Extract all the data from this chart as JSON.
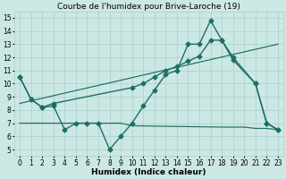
{
  "line1_x": [
    0,
    1,
    2,
    3,
    4,
    5,
    6,
    7,
    8,
    9,
    10,
    11,
    12,
    13,
    14,
    15,
    16,
    17,
    18,
    19,
    21,
    22,
    23
  ],
  "line1_y": [
    10.5,
    8.8,
    8.2,
    8.3,
    6.5,
    7.0,
    7.0,
    7.0,
    5.0,
    6.0,
    7.0,
    8.3,
    9.5,
    10.7,
    11.0,
    13.0,
    13.0,
    14.8,
    13.3,
    11.8,
    10.0,
    7.0,
    6.5
  ],
  "line2_x": [
    0,
    1,
    2,
    3,
    10,
    11,
    12,
    13,
    14,
    15,
    16,
    17,
    18,
    19,
    21,
    22,
    23
  ],
  "line2_y": [
    10.5,
    8.8,
    8.2,
    8.5,
    9.7,
    10.0,
    10.5,
    11.0,
    11.3,
    11.7,
    12.1,
    13.3,
    13.3,
    12.0,
    10.0,
    7.0,
    6.5
  ],
  "line3_x": [
    0,
    23
  ],
  "line3_y": [
    8.5,
    13.0
  ],
  "line4_x": [
    0,
    9,
    10,
    18,
    19,
    20,
    21,
    22,
    23
  ],
  "line4_y": [
    7.0,
    7.0,
    6.8,
    6.7,
    6.7,
    6.7,
    6.6,
    6.6,
    6.5
  ],
  "title": "Courbe de l'humidex pour Brive-Laroche (19)",
  "xlabel": "Humidex (Indice chaleur)",
  "xlim": [
    -0.5,
    23.5
  ],
  "ylim": [
    4.5,
    15.5
  ],
  "yticks": [
    5,
    6,
    7,
    8,
    9,
    10,
    11,
    12,
    13,
    14,
    15
  ],
  "xticks": [
    0,
    1,
    2,
    3,
    4,
    5,
    6,
    7,
    8,
    9,
    10,
    11,
    12,
    13,
    14,
    15,
    16,
    17,
    18,
    19,
    20,
    21,
    22,
    23
  ],
  "bg_color": "#cce8e4",
  "grid_color": "#aacfcb",
  "line_color": "#1e6e65",
  "linewidth": 1.0,
  "markersize": 2.5,
  "title_fontsize": 6.5,
  "label_fontsize": 6.5,
  "tick_fontsize": 5.5
}
